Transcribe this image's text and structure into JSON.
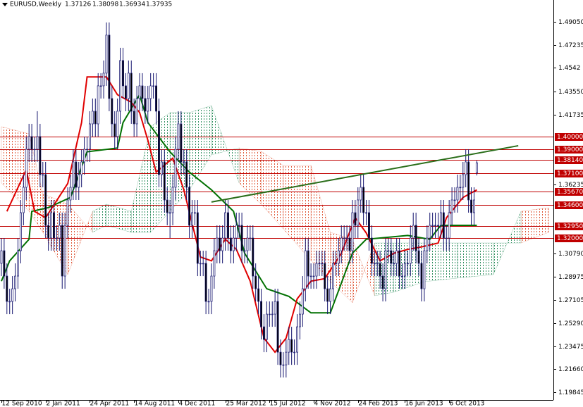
{
  "chart_data": {
    "type": "candlestick",
    "title": "EURUSD,Weekly",
    "open": [
      1.3,
      1.31,
      1.29,
      1.27,
      1.27,
      1.28,
      1.29,
      1.31,
      1.34,
      1.36,
      1.39,
      1.4,
      1.39,
      1.39,
      1.4,
      1.37,
      1.37,
      1.33,
      1.32,
      1.34,
      1.32,
      1.32,
      1.33,
      1.29,
      1.33,
      1.35,
      1.36,
      1.38,
      1.36,
      1.37,
      1.38,
      1.39,
      1.39,
      1.41,
      1.42,
      1.41,
      1.44,
      1.44,
      1.45,
      1.48,
      1.43,
      1.41,
      1.4,
      1.42,
      1.46,
      1.44,
      1.43,
      1.45,
      1.42,
      1.41,
      1.43,
      1.44,
      1.43,
      1.42,
      1.43,
      1.44,
      1.44,
      1.42,
      1.37,
      1.38,
      1.35,
      1.34,
      1.34,
      1.36,
      1.39,
      1.41,
      1.38,
      1.38,
      1.36,
      1.33,
      1.34,
      1.34,
      1.3,
      1.3,
      1.3,
      1.27,
      1.27,
      1.29,
      1.31,
      1.32,
      1.31,
      1.32,
      1.34,
      1.32,
      1.31,
      1.32,
      1.33,
      1.33,
      1.31,
      1.31,
      1.32,
      1.32,
      1.29,
      1.28,
      1.27,
      1.25,
      1.24,
      1.26,
      1.26,
      1.26,
      1.27,
      1.23,
      1.22,
      1.22,
      1.23,
      1.24,
      1.23,
      1.23,
      1.25,
      1.26,
      1.28,
      1.31,
      1.29,
      1.29,
      1.29,
      1.3,
      1.3,
      1.3,
      1.28,
      1.27,
      1.28,
      1.3,
      1.3,
      1.31,
      1.32,
      1.32,
      1.32,
      1.31,
      1.34,
      1.33,
      1.35,
      1.36,
      1.34,
      1.34,
      1.32,
      1.3,
      1.3,
      1.3,
      1.29,
      1.28,
      1.31,
      1.31,
      1.3,
      1.3,
      1.31,
      1.29,
      1.29,
      1.3,
      1.3,
      1.32,
      1.33,
      1.31,
      1.3,
      1.28,
      1.31,
      1.32,
      1.33,
      1.33,
      1.33,
      1.33,
      1.34,
      1.32,
      1.32,
      1.34,
      1.35,
      1.35,
      1.36,
      1.36,
      1.37,
      1.38,
      1.35,
      1.34,
      1.37126
    ],
    "high": [
      1.32,
      1.32,
      1.3,
      1.28,
      1.29,
      1.3,
      1.32,
      1.35,
      1.37,
      1.4,
      1.41,
      1.41,
      1.4,
      1.42,
      1.41,
      1.38,
      1.38,
      1.34,
      1.35,
      1.35,
      1.33,
      1.34,
      1.34,
      1.34,
      1.36,
      1.37,
      1.39,
      1.39,
      1.38,
      1.39,
      1.4,
      1.4,
      1.42,
      1.43,
      1.43,
      1.45,
      1.45,
      1.46,
      1.49,
      1.49,
      1.44,
      1.42,
      1.43,
      1.47,
      1.47,
      1.45,
      1.46,
      1.46,
      1.43,
      1.44,
      1.45,
      1.45,
      1.44,
      1.44,
      1.45,
      1.45,
      1.45,
      1.43,
      1.39,
      1.39,
      1.36,
      1.35,
      1.37,
      1.4,
      1.42,
      1.42,
      1.39,
      1.39,
      1.37,
      1.35,
      1.35,
      1.35,
      1.31,
      1.31,
      1.31,
      1.28,
      1.3,
      1.32,
      1.33,
      1.33,
      1.33,
      1.35,
      1.35,
      1.33,
      1.33,
      1.34,
      1.34,
      1.34,
      1.32,
      1.33,
      1.33,
      1.33,
      1.3,
      1.29,
      1.28,
      1.26,
      1.27,
      1.27,
      1.27,
      1.28,
      1.28,
      1.24,
      1.23,
      1.24,
      1.25,
      1.25,
      1.24,
      1.26,
      1.27,
      1.29,
      1.32,
      1.32,
      1.3,
      1.3,
      1.31,
      1.31,
      1.31,
      1.31,
      1.29,
      1.29,
      1.31,
      1.31,
      1.32,
      1.33,
      1.33,
      1.33,
      1.33,
      1.35,
      1.35,
      1.36,
      1.37,
      1.37,
      1.35,
      1.35,
      1.33,
      1.31,
      1.31,
      1.31,
      1.3,
      1.32,
      1.32,
      1.32,
      1.31,
      1.32,
      1.32,
      1.3,
      1.31,
      1.31,
      1.33,
      1.34,
      1.34,
      1.32,
      1.31,
      1.32,
      1.33,
      1.34,
      1.34,
      1.34,
      1.34,
      1.35,
      1.35,
      1.33,
      1.35,
      1.36,
      1.36,
      1.37,
      1.37,
      1.38,
      1.39,
      1.39,
      1.36,
      1.36,
      1.38098
    ],
    "low": [
      1.29,
      1.28,
      1.26,
      1.26,
      1.26,
      1.27,
      1.28,
      1.3,
      1.33,
      1.35,
      1.38,
      1.38,
      1.38,
      1.38,
      1.36,
      1.36,
      1.32,
      1.31,
      1.31,
      1.31,
      1.31,
      1.31,
      1.28,
      1.28,
      1.32,
      1.34,
      1.35,
      1.35,
      1.35,
      1.36,
      1.37,
      1.38,
      1.38,
      1.4,
      1.4,
      1.4,
      1.43,
      1.43,
      1.44,
      1.42,
      1.4,
      1.39,
      1.39,
      1.41,
      1.43,
      1.42,
      1.42,
      1.41,
      1.4,
      1.4,
      1.42,
      1.42,
      1.41,
      1.41,
      1.42,
      1.43,
      1.41,
      1.36,
      1.36,
      1.34,
      1.33,
      1.32,
      1.33,
      1.35,
      1.38,
      1.37,
      1.37,
      1.35,
      1.32,
      1.32,
      1.33,
      1.29,
      1.29,
      1.29,
      1.26,
      1.26,
      1.26,
      1.28,
      1.3,
      1.3,
      1.3,
      1.31,
      1.31,
      1.3,
      1.3,
      1.31,
      1.32,
      1.3,
      1.3,
      1.3,
      1.31,
      1.28,
      1.27,
      1.26,
      1.24,
      1.23,
      1.23,
      1.25,
      1.25,
      1.25,
      1.22,
      1.21,
      1.21,
      1.21,
      1.22,
      1.22,
      1.22,
      1.22,
      1.24,
      1.25,
      1.27,
      1.28,
      1.28,
      1.28,
      1.28,
      1.29,
      1.29,
      1.27,
      1.26,
      1.26,
      1.27,
      1.29,
      1.29,
      1.3,
      1.31,
      1.31,
      1.3,
      1.3,
      1.32,
      1.32,
      1.34,
      1.33,
      1.33,
      1.31,
      1.29,
      1.29,
      1.29,
      1.28,
      1.27,
      1.27,
      1.3,
      1.29,
      1.29,
      1.29,
      1.28,
      1.28,
      1.28,
      1.29,
      1.29,
      1.31,
      1.3,
      1.29,
      1.27,
      1.27,
      1.3,
      1.31,
      1.32,
      1.32,
      1.32,
      1.32,
      1.31,
      1.31,
      1.31,
      1.33,
      1.34,
      1.34,
      1.35,
      1.35,
      1.36,
      1.34,
      1.33,
      1.33,
      1.36934
    ],
    "close": [
      1.31,
      1.29,
      1.27,
      1.27,
      1.28,
      1.29,
      1.31,
      1.34,
      1.36,
      1.39,
      1.4,
      1.39,
      1.39,
      1.4,
      1.37,
      1.37,
      1.33,
      1.32,
      1.34,
      1.32,
      1.32,
      1.33,
      1.29,
      1.33,
      1.35,
      1.36,
      1.38,
      1.36,
      1.37,
      1.38,
      1.39,
      1.39,
      1.41,
      1.42,
      1.41,
      1.44,
      1.44,
      1.45,
      1.48,
      1.43,
      1.41,
      1.4,
      1.42,
      1.46,
      1.44,
      1.43,
      1.45,
      1.42,
      1.41,
      1.43,
      1.44,
      1.43,
      1.42,
      1.43,
      1.44,
      1.44,
      1.42,
      1.37,
      1.38,
      1.35,
      1.34,
      1.34,
      1.36,
      1.39,
      1.41,
      1.38,
      1.38,
      1.36,
      1.33,
      1.34,
      1.34,
      1.3,
      1.3,
      1.3,
      1.27,
      1.27,
      1.29,
      1.31,
      1.32,
      1.31,
      1.32,
      1.34,
      1.32,
      1.31,
      1.32,
      1.33,
      1.33,
      1.31,
      1.31,
      1.32,
      1.32,
      1.29,
      1.28,
      1.27,
      1.25,
      1.24,
      1.26,
      1.26,
      1.26,
      1.27,
      1.23,
      1.22,
      1.22,
      1.23,
      1.24,
      1.23,
      1.23,
      1.25,
      1.26,
      1.28,
      1.31,
      1.29,
      1.29,
      1.29,
      1.3,
      1.3,
      1.3,
      1.28,
      1.27,
      1.28,
      1.3,
      1.3,
      1.31,
      1.32,
      1.32,
      1.32,
      1.31,
      1.34,
      1.33,
      1.35,
      1.36,
      1.34,
      1.34,
      1.32,
      1.3,
      1.3,
      1.3,
      1.29,
      1.28,
      1.31,
      1.31,
      1.3,
      1.3,
      1.31,
      1.29,
      1.29,
      1.3,
      1.3,
      1.32,
      1.33,
      1.31,
      1.3,
      1.28,
      1.31,
      1.32,
      1.33,
      1.33,
      1.33,
      1.33,
      1.34,
      1.32,
      1.32,
      1.34,
      1.35,
      1.35,
      1.36,
      1.36,
      1.37,
      1.38,
      1.35,
      1.34,
      1.35,
      1.37935
    ],
    "candle_color": "#14146e",
    "xlim": [
      -0.5,
      199.7
    ],
    "ylim": [
      1.1923,
      1.5077
    ],
    "xticks": [
      {
        "value": 0,
        "label": "12 Sep 2010"
      },
      {
        "value": 16,
        "label": "2 Jan 2011"
      },
      {
        "value": 32,
        "label": "24 Apr 2011"
      },
      {
        "value": 48,
        "label": "14 Aug 2011"
      },
      {
        "value": 64,
        "label": "4 Dec 2011"
      },
      {
        "value": 81,
        "label": "25 Mar 2012"
      },
      {
        "value": 97,
        "label": "15 Jul 2012"
      },
      {
        "value": 113,
        "label": "4 Nov 2012"
      },
      {
        "value": 129,
        "label": "24 Feb 2013"
      },
      {
        "value": 146,
        "label": "16 Jun 2013"
      },
      {
        "value": 162,
        "label": "6 Oct 2013"
      }
    ],
    "yticks": [
      {
        "value": 1.4905,
        "label": "1.49050"
      },
      1.47235,
      1.4542,
      {
        "value": 1.4355,
        "label": "1.43550"
      },
      1.41735,
      1.36235,
      {
        "value": 1.3079,
        "label": "1.30790"
      },
      1.28975,
      1.27105,
      {
        "value": 1.2529,
        "label": "1.25290"
      },
      1.23475,
      {
        "value": 1.2166,
        "label": "1.21660"
      },
      1.19845
    ],
    "levels": {
      "color": "#c00000",
      "values": [
        {
          "value": 1.4,
          "label": "1.40000"
        },
        {
          "value": 1.39,
          "label": "1.39000"
        },
        {
          "value": 1.3814,
          "label": "1.38140"
        },
        {
          "value": 1.371,
          "label": "1.37100"
        },
        {
          "value": 1.3567,
          "label": "1.35670"
        },
        {
          "value": 1.346,
          "label": "1.34600"
        },
        {
          "value": 1.3295,
          "label": "1.32950"
        },
        {
          "value": 1.32,
          "label": "1.32000"
        }
      ]
    },
    "trendline": {
      "color": "#2a6e1a",
      "x": [
        76,
        187
      ],
      "y": [
        1.3484,
        1.3928
      ]
    },
    "tenkan": {
      "color": "#e00000",
      "x": [
        2,
        9,
        12,
        16,
        24,
        29,
        31,
        38,
        42,
        47,
        50,
        53,
        56,
        62,
        66,
        72,
        76,
        81,
        85,
        90,
        95,
        99,
        103,
        107,
        112,
        117,
        123,
        128,
        132,
        137,
        142,
        147,
        152,
        158,
        161,
        167,
        172
      ],
      "y": [
        1.341,
        1.374,
        1.341,
        1.336,
        1.363,
        1.411,
        1.447,
        1.447,
        1.433,
        1.427,
        1.419,
        1.397,
        1.372,
        1.383,
        1.358,
        1.305,
        1.302,
        1.319,
        1.311,
        1.286,
        1.241,
        1.23,
        1.241,
        1.272,
        1.286,
        1.288,
        1.308,
        1.336,
        1.324,
        1.302,
        1.308,
        1.311,
        1.313,
        1.316,
        1.336,
        1.352,
        1.358
      ]
    },
    "kijun": {
      "color": "#007000",
      "x": [
        0,
        3,
        10,
        11,
        17,
        25,
        31,
        42,
        44,
        50,
        53,
        61,
        68,
        76,
        84,
        88,
        96,
        104,
        112,
        119,
        127,
        132,
        147,
        155,
        159,
        172
      ],
      "y": [
        1.286,
        1.302,
        1.319,
        1.341,
        1.344,
        1.352,
        1.388,
        1.391,
        1.411,
        1.433,
        1.411,
        1.388,
        1.372,
        1.358,
        1.341,
        1.308,
        1.28,
        1.274,
        1.261,
        1.261,
        1.308,
        1.319,
        1.322,
        1.319,
        1.33,
        1.33
      ]
    },
    "cloud": {
      "up_color": "#2f8f5f",
      "down_color": "#e05a3a",
      "x": [
        0,
        10,
        15,
        24,
        33,
        38,
        47,
        54,
        61,
        68,
        76,
        86,
        94,
        102,
        112,
        119,
        127,
        135,
        142,
        153,
        165,
        178,
        188,
        198
      ],
      "span_a": [
        1.3634,
        1.3411,
        1.3245,
        1.2912,
        1.3411,
        1.3467,
        1.3411,
        1.4078,
        1.4189,
        1.4189,
        1.4244,
        1.3634,
        1.3467,
        1.3272,
        1.3023,
        1.2856,
        1.269,
        1.3161,
        1.3161,
        1.3161,
        1.3161,
        1.3161,
        1.3161,
        1.3245
      ],
      "span_b": [
        1.4078,
        1.4022,
        1.355,
        1.3467,
        1.3245,
        1.33,
        1.3245,
        1.3245,
        1.3411,
        1.3578,
        1.3856,
        1.3911,
        1.3883,
        1.3772,
        1.3772,
        1.3245,
        1.3189,
        1.2745,
        1.2773,
        1.2856,
        1.2884,
        1.2912,
        1.3411,
        1.3439
      ]
    }
  }
}
